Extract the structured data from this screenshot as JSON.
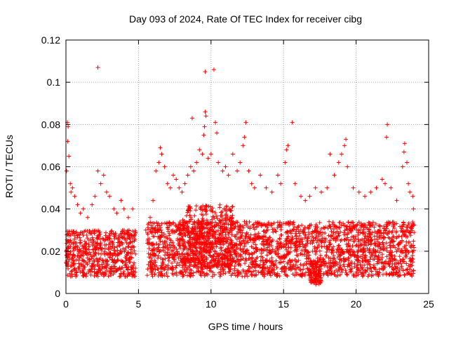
{
  "chart_data": {
    "type": "scatter",
    "title": "Day 093 of 2024, Rate Of TEC Index for receiver cibg",
    "xlabel": "GPS time / hours",
    "ylabel": "ROTI / TECUs",
    "xlim": [
      0,
      25
    ],
    "ylim": [
      0,
      0.12
    ],
    "xticks": [
      0,
      5,
      10,
      15,
      20,
      25
    ],
    "xtick_labels": [
      "0",
      "5",
      "10",
      "15",
      "20",
      "25"
    ],
    "yticks": [
      0,
      0.02,
      0.04,
      0.06,
      0.08,
      0.1,
      0.12
    ],
    "ytick_labels": [
      "0",
      "0.02",
      "0.04",
      "0.06",
      "0.08",
      "0.1",
      "0.12"
    ],
    "grid": true,
    "marker": "plus",
    "color": "#ff0000",
    "series": [
      {
        "name": "ROTI",
        "points": [
          [
            0.1,
            0.081
          ],
          [
            0.15,
            0.079
          ],
          [
            0.12,
            0.072
          ],
          [
            0.2,
            0.065
          ],
          [
            0.05,
            0.058
          ],
          [
            0.3,
            0.052
          ],
          [
            0.35,
            0.048
          ],
          [
            0.45,
            0.05
          ],
          [
            0.6,
            0.046
          ],
          [
            0.8,
            0.042
          ],
          [
            1.0,
            0.038
          ],
          [
            1.2,
            0.04
          ],
          [
            1.5,
            0.036
          ],
          [
            1.8,
            0.042
          ],
          [
            2.0,
            0.046
          ],
          [
            2.2,
            0.058
          ],
          [
            2.2,
            0.107
          ],
          [
            2.4,
            0.052
          ],
          [
            2.6,
            0.056
          ],
          [
            2.8,
            0.048
          ],
          [
            3.0,
            0.046
          ],
          [
            3.3,
            0.04
          ],
          [
            3.5,
            0.038
          ],
          [
            3.8,
            0.044
          ],
          [
            4.0,
            0.04
          ],
          [
            4.3,
            0.036
          ],
          [
            4.6,
            0.04
          ],
          [
            5.5,
            0.03
          ],
          [
            5.8,
            0.036
          ],
          [
            6.0,
            0.044
          ],
          [
            6.2,
            0.058
          ],
          [
            6.4,
            0.062
          ],
          [
            6.5,
            0.069
          ],
          [
            6.6,
            0.066
          ],
          [
            6.8,
            0.06
          ],
          [
            7.0,
            0.052
          ],
          [
            7.2,
            0.05
          ],
          [
            7.4,
            0.056
          ],
          [
            7.6,
            0.054
          ],
          [
            7.8,
            0.05
          ],
          [
            8.0,
            0.048
          ],
          [
            8.2,
            0.052
          ],
          [
            8.4,
            0.056
          ],
          [
            8.6,
            0.06
          ],
          [
            8.7,
            0.083
          ],
          [
            8.8,
            0.058
          ],
          [
            9.0,
            0.062
          ],
          [
            9.2,
            0.068
          ],
          [
            9.4,
            0.066
          ],
          [
            9.5,
            0.075
          ],
          [
            9.55,
            0.079
          ],
          [
            9.6,
            0.086
          ],
          [
            9.65,
            0.084
          ],
          [
            9.6,
            0.105
          ],
          [
            10.2,
            0.106
          ],
          [
            9.8,
            0.064
          ],
          [
            10.0,
            0.066
          ],
          [
            10.3,
            0.081
          ],
          [
            10.4,
            0.076
          ],
          [
            10.5,
            0.062
          ],
          [
            10.8,
            0.058
          ],
          [
            11.0,
            0.06
          ],
          [
            11.2,
            0.056
          ],
          [
            11.5,
            0.066
          ],
          [
            11.8,
            0.058
          ],
          [
            12.0,
            0.062
          ],
          [
            12.2,
            0.07
          ],
          [
            12.3,
            0.074
          ],
          [
            12.4,
            0.081
          ],
          [
            12.6,
            0.058
          ],
          [
            12.8,
            0.052
          ],
          [
            13.0,
            0.05
          ],
          [
            13.4,
            0.056
          ],
          [
            13.8,
            0.05
          ],
          [
            14.2,
            0.048
          ],
          [
            14.6,
            0.056
          ],
          [
            14.8,
            0.052
          ],
          [
            15.1,
            0.062
          ],
          [
            15.2,
            0.068
          ],
          [
            15.3,
            0.07
          ],
          [
            15.6,
            0.081
          ],
          [
            15.8,
            0.052
          ],
          [
            16.2,
            0.046
          ],
          [
            16.5,
            0.044
          ],
          [
            16.8,
            0.046
          ],
          [
            17.2,
            0.05
          ],
          [
            17.6,
            0.048
          ],
          [
            18.0,
            0.05
          ],
          [
            18.2,
            0.066
          ],
          [
            18.5,
            0.056
          ],
          [
            18.8,
            0.062
          ],
          [
            19.0,
            0.066
          ],
          [
            19.2,
            0.07
          ],
          [
            19.3,
            0.073
          ],
          [
            19.4,
            0.06
          ],
          [
            19.8,
            0.05
          ],
          [
            20.2,
            0.048
          ],
          [
            20.6,
            0.046
          ],
          [
            21.0,
            0.048
          ],
          [
            21.4,
            0.05
          ],
          [
            21.8,
            0.054
          ],
          [
            22.0,
            0.052
          ],
          [
            22.1,
            0.074
          ],
          [
            22.15,
            0.08
          ],
          [
            22.4,
            0.05
          ],
          [
            22.8,
            0.044
          ],
          [
            23.2,
            0.06
          ],
          [
            23.3,
            0.067
          ],
          [
            23.35,
            0.071
          ],
          [
            23.5,
            0.062
          ],
          [
            23.6,
            0.052
          ],
          [
            23.7,
            0.048
          ],
          [
            23.9,
            0.046
          ],
          [
            23.95,
            0.04
          ]
        ],
        "dense_bands": [
          {
            "x": [
              0.0,
              4.8
            ],
            "y": [
              0.008,
              0.03
            ]
          },
          {
            "x": [
              5.6,
              24.0
            ],
            "y": [
              0.008,
              0.034
            ]
          },
          {
            "x": [
              8.0,
              11.5
            ],
            "y": [
              0.012,
              0.042
            ]
          },
          {
            "x": [
              16.8,
              17.6
            ],
            "y": [
              0.004,
              0.016
            ]
          }
        ]
      }
    ]
  }
}
